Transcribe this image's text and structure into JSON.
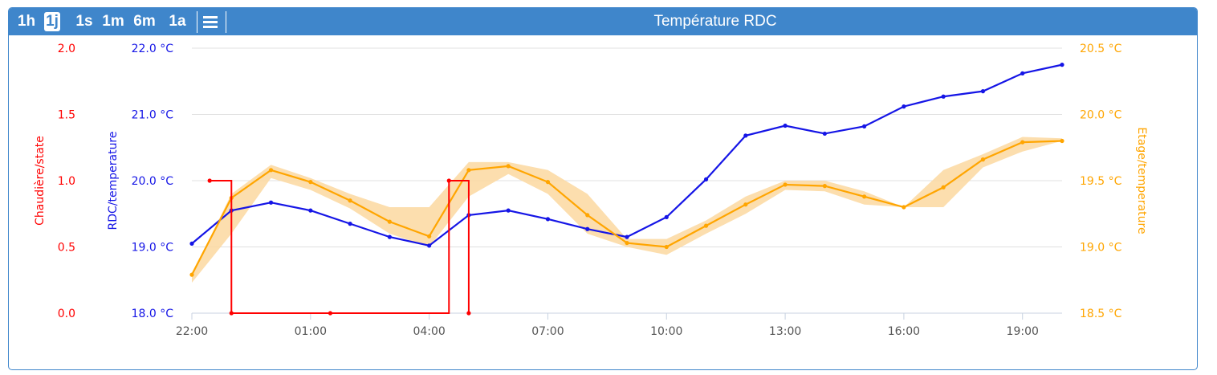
{
  "toolbar": {
    "ranges": [
      {
        "label": "1h",
        "active": false
      },
      {
        "label": "1j",
        "active": true
      },
      {
        "label": "1s",
        "active": false
      },
      {
        "label": "1m",
        "active": false
      },
      {
        "label": "6m",
        "active": false
      },
      {
        "label": "1a",
        "active": false
      }
    ],
    "menu_icon": "hamburger-menu-icon"
  },
  "colors": {
    "header": "#3f86cb",
    "chaudiere": "#ff0000",
    "rdc": "#1515e6",
    "etage": "#ffa500",
    "etage_band": "#fcd8a0"
  },
  "chart_data": {
    "type": "line",
    "title": "Température RDC",
    "x_ticks": [
      "22:00",
      "01:00",
      "04:00",
      "07:00",
      "10:00",
      "13:00",
      "16:00",
      "19:00"
    ],
    "grid": true,
    "axes": {
      "chaudiere": {
        "label": "Chaudière/state",
        "ticks": [
          "2.0",
          "1.5",
          "1.0",
          "0.5",
          "0.0"
        ],
        "ylim": [
          0,
          2
        ]
      },
      "rdc": {
        "label": "RDC/temperature",
        "ticks": [
          "22.0 °C",
          "21.0 °C",
          "20.0 °C",
          "19.0 °C",
          "18.0 °C"
        ],
        "ylim": [
          18,
          22
        ]
      },
      "etage": {
        "label": "Etage/temperature",
        "ticks": [
          "20.5 °C",
          "20.0 °C",
          "19.5 °C",
          "19.0 °C",
          "18.5 °C"
        ],
        "ylim": [
          18.5,
          20.5
        ]
      }
    },
    "series": [
      {
        "name": "Chaudière/state",
        "axis": "chaudiere",
        "step": true,
        "points": [
          [
            22.45,
            1
          ],
          [
            23.0,
            0
          ],
          [
            1.5,
            0
          ],
          [
            4.5,
            1
          ],
          [
            5.0,
            0
          ]
        ]
      },
      {
        "name": "RDC/temperature",
        "axis": "rdc",
        "points": [
          [
            22,
            19.05
          ],
          [
            23,
            19.55
          ],
          [
            0,
            19.67
          ],
          [
            1,
            19.55
          ],
          [
            2,
            19.35
          ],
          [
            3,
            19.15
          ],
          [
            4,
            19.02
          ],
          [
            5,
            19.48
          ],
          [
            6,
            19.55
          ],
          [
            7,
            19.42
          ],
          [
            8,
            19.27
          ],
          [
            9,
            19.15
          ],
          [
            10,
            19.45
          ],
          [
            11,
            20.02
          ],
          [
            12,
            20.68
          ],
          [
            13,
            20.83
          ],
          [
            14,
            20.71
          ],
          [
            15,
            20.82
          ],
          [
            16,
            21.12
          ],
          [
            17,
            21.27
          ],
          [
            18,
            21.35
          ],
          [
            19,
            21.62
          ],
          [
            20,
            21.75
          ]
        ]
      },
      {
        "name": "Etage/temperature",
        "axis": "etage",
        "points": [
          [
            22,
            18.79
          ],
          [
            23,
            19.37
          ],
          [
            0,
            19.58
          ],
          [
            1,
            19.49
          ],
          [
            2,
            19.35
          ],
          [
            3,
            19.19
          ],
          [
            4,
            19.08
          ],
          [
            5,
            19.58
          ],
          [
            6,
            19.61
          ],
          [
            7,
            19.49
          ],
          [
            8,
            19.24
          ],
          [
            9,
            19.03
          ],
          [
            10,
            19.0
          ],
          [
            11,
            19.16
          ],
          [
            12,
            19.32
          ],
          [
            13,
            19.47
          ],
          [
            14,
            19.46
          ],
          [
            15,
            19.38
          ],
          [
            16,
            19.3
          ],
          [
            17,
            19.45
          ],
          [
            18,
            19.66
          ],
          [
            19,
            19.79
          ],
          [
            20,
            19.8
          ]
        ],
        "band_low": [
          18.73,
          19.1,
          19.52,
          19.43,
          19.29,
          19.1,
          19.0,
          19.38,
          19.55,
          19.4,
          19.1,
          19.0,
          18.94,
          19.1,
          19.25,
          19.43,
          19.42,
          19.32,
          19.3,
          19.3,
          19.6,
          19.72,
          19.8
        ],
        "band_high": [
          18.79,
          19.4,
          19.62,
          19.52,
          19.4,
          19.3,
          19.3,
          19.64,
          19.64,
          19.58,
          19.4,
          19.06,
          19.06,
          19.2,
          19.38,
          19.5,
          19.5,
          19.42,
          19.3,
          19.58,
          19.7,
          19.83,
          19.82
        ]
      }
    ]
  }
}
